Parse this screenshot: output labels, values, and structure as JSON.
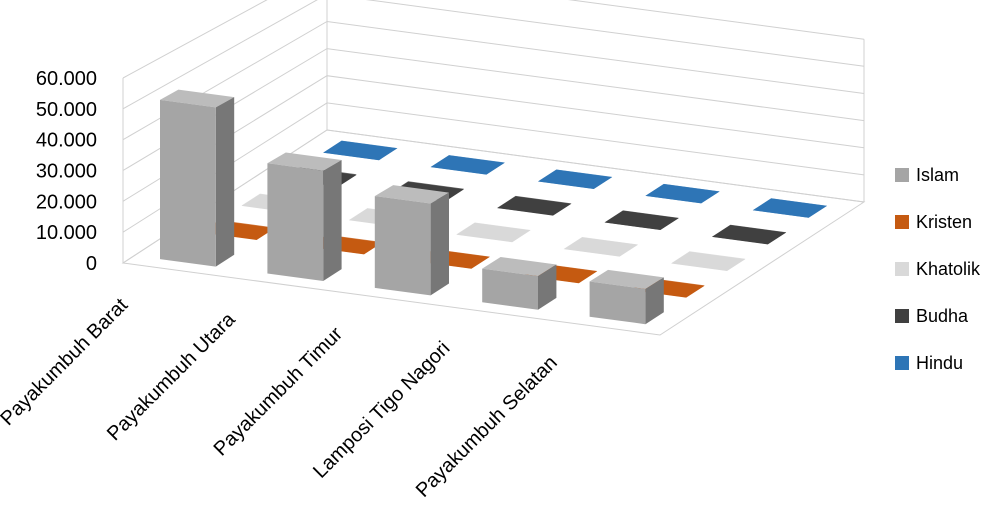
{
  "chart_data": {
    "type": "bar",
    "categories": [
      "Payakumbuh Barat",
      "Payakumbuh Utara",
      "Payakumbuh Timur",
      "Lamposi Tigo Nagori",
      "Payakumbuh Selatan"
    ],
    "series": [
      {
        "name": "Islam",
        "values": [
          52000,
          36000,
          30000,
          11000,
          11500
        ],
        "color": "#A5A5A5"
      },
      {
        "name": "Kristen",
        "values": [
          150,
          120,
          100,
          80,
          90
        ],
        "color": "#C55A11"
      },
      {
        "name": "Khatolik",
        "values": [
          140,
          110,
          100,
          70,
          80
        ],
        "color": "#D9D9D9"
      },
      {
        "name": "Budha",
        "values": [
          200,
          150,
          100,
          60,
          80
        ],
        "color": "#404040"
      },
      {
        "name": "Hindu",
        "values": [
          50,
          40,
          40,
          30,
          30
        ],
        "color": "#2E75B6"
      }
    ],
    "yticks": [
      "0",
      "10.000",
      "20.000",
      "30.000",
      "40.000",
      "50.000",
      "60.000"
    ],
    "ylim": [
      0,
      60000
    ],
    "legend_position": "right",
    "grid": true
  }
}
